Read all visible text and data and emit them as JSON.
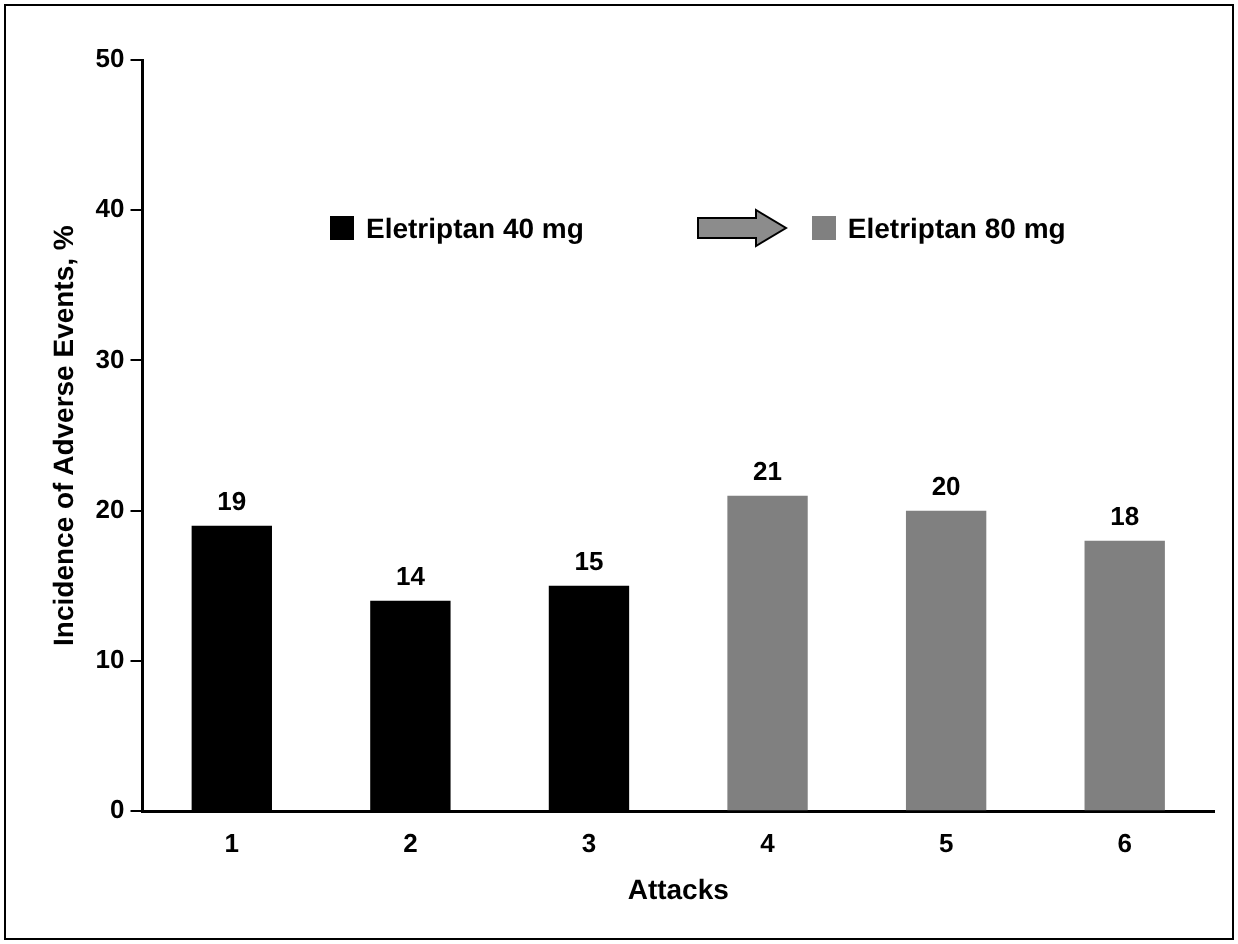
{
  "chart_data": {
    "type": "bar",
    "xlabel": "Attacks",
    "ylabel": "Incidence of Adverse Events, %",
    "categories": [
      "1",
      "2",
      "3",
      "4",
      "5",
      "6"
    ],
    "series": [
      {
        "name": "Eletriptan 40 mg",
        "color": "#000000",
        "values": [
          19,
          14,
          15,
          null,
          null,
          null
        ]
      },
      {
        "name": "Eletriptan 80 mg",
        "color": "#808080",
        "values": [
          null,
          null,
          null,
          21,
          20,
          18
        ]
      }
    ],
    "ylim": [
      0,
      50
    ],
    "yticks": [
      0,
      10,
      20,
      30,
      40,
      50
    ],
    "grid": false,
    "legend": "top",
    "data_labels": true
  }
}
